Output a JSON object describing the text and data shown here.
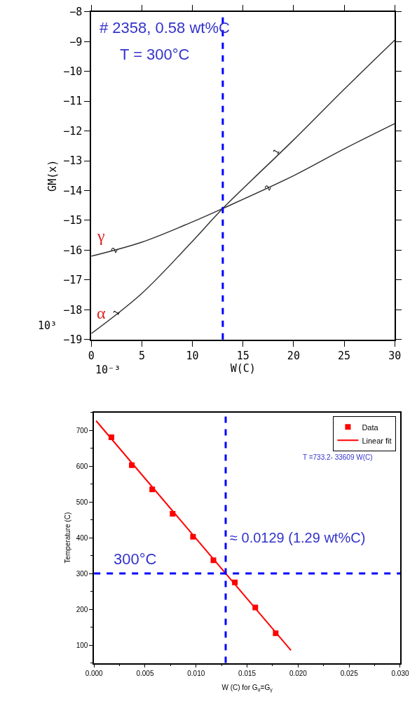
{
  "chart_data": [
    {
      "type": "line",
      "x": [
        0,
        5,
        10,
        13,
        20,
        25,
        30
      ],
      "series": [
        {
          "name": "α",
          "color": "#333333",
          "values": [
            -18.8,
            -17.45,
            -15.7,
            -14.6,
            -12.3,
            -10.6,
            -8.95
          ]
        },
        {
          "name": "γ",
          "color": "#333333",
          "values": [
            -16.2,
            -15.73,
            -15.05,
            -14.6,
            -13.5,
            -12.6,
            -11.75
          ]
        }
      ],
      "xlim": [
        0,
        30
      ],
      "xticks": [
        0,
        5,
        10,
        15,
        20,
        25,
        30
      ],
      "ylim": [
        -19,
        -8
      ],
      "yticks": [
        -19,
        -18,
        -17,
        -16,
        -15,
        -14,
        -13,
        -12,
        -11,
        -10,
        -9,
        -8
      ],
      "xlabel": "W(C)",
      "ylabel": "GM(x)",
      "annotations": [
        "# 2358, 0.58 wt%C",
        "T = 300°C",
        "10³",
        "10⁻³",
        {
          "text": "1",
          "x": 2.5,
          "y": -18.1
        },
        {
          "text": "2",
          "x": 2.3,
          "y": -16.0
        },
        {
          "text": "1",
          "x": 18.3,
          "y": -12.7
        },
        {
          "text": "2",
          "x": 17.5,
          "y": -13.9
        }
      ],
      "ref_lines": [
        {
          "axis": "x",
          "value": 13,
          "color": "#0000ff",
          "line_style": "dashed"
        }
      ],
      "legend": false,
      "marker": "none"
    },
    {
      "type": "scatter",
      "series": [
        {
          "name": "Data",
          "type": "scatter",
          "marker": "square",
          "color": "#ff0000",
          "x": [
            0.0017,
            0.0037,
            0.0057,
            0.0077,
            0.0097,
            0.0117,
            0.0138,
            0.0158,
            0.0178
          ],
          "values": [
            681,
            603,
            535,
            467,
            403,
            337,
            275,
            205,
            133
          ]
        },
        {
          "name": "Linear fit",
          "type": "line",
          "marker": "none",
          "color": "#ff0000",
          "x": [
            0.0002,
            0.0193
          ],
          "values": [
            727,
            85
          ]
        }
      ],
      "xlim": [
        0,
        0.03
      ],
      "xticks": [
        {
          "value": 0,
          "label": "0.000"
        },
        {
          "value": 0.005,
          "label": "0.005"
        },
        {
          "value": 0.01,
          "label": "0.010"
        },
        {
          "value": 0.015,
          "label": "0.015"
        },
        {
          "value": 0.02,
          "label": "0.020"
        },
        {
          "value": 0.025,
          "label": "0.025"
        },
        {
          "value": 0.03,
          "label": "0.030"
        }
      ],
      "ylim": [
        50,
        750
      ],
      "yticks": [
        100,
        200,
        300,
        400,
        500,
        600,
        700
      ],
      "xlabel": "W (C) for G$_{α}$=G$_{γ}$",
      "ylabel": "Temperature (C)",
      "annotations": [
        "T =733.2- 33609 W(C)"
      ],
      "ref_lines": [
        {
          "axis": "x",
          "value": 0.0129,
          "label": "≈ 0.0129 (1.29 wt%C)",
          "color": "#0000ff",
          "line_style": "dashed"
        },
        {
          "axis": "y",
          "value": 300,
          "label": "300°C",
          "color": "#0000ff",
          "line_style": "dashed"
        }
      ],
      "legend": "top right"
    }
  ]
}
